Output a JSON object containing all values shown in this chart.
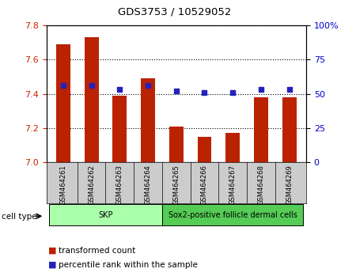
{
  "title": "GDS3753 / 10529052",
  "samples": [
    "GSM464261",
    "GSM464262",
    "GSM464263",
    "GSM464264",
    "GSM464265",
    "GSM464266",
    "GSM464267",
    "GSM464268",
    "GSM464269"
  ],
  "transformed_count": [
    7.69,
    7.73,
    7.39,
    7.49,
    7.21,
    7.15,
    7.17,
    7.38,
    7.38
  ],
  "percentile_rank": [
    56,
    56,
    53,
    56,
    52,
    51,
    51,
    53,
    53
  ],
  "ylim_left": [
    7.0,
    7.8
  ],
  "ylim_right": [
    0,
    100
  ],
  "yticks_left": [
    7.0,
    7.2,
    7.4,
    7.6,
    7.8
  ],
  "yticks_right": [
    0,
    25,
    50,
    75,
    100
  ],
  "ytick_labels_right": [
    "0",
    "25",
    "50",
    "75",
    "100%"
  ],
  "bar_color": "#bb2200",
  "dot_color": "#2222bb",
  "bar_width": 0.5,
  "cell_type_groups": [
    {
      "label": "SKP",
      "start": 0,
      "end": 4,
      "color": "#aaffaa"
    },
    {
      "label": "Sox2-positive follicle dermal cells",
      "start": 4,
      "end": 9,
      "color": "#55cc55"
    }
  ],
  "cell_type_label": "cell type",
  "legend_items": [
    {
      "label": "transformed count",
      "color": "#bb2200"
    },
    {
      "label": "percentile rank within the sample",
      "color": "#2222bb"
    }
  ],
  "background_color": "#ffffff",
  "tick_label_color_left": "#cc2200",
  "tick_label_color_right": "#0000cc",
  "xlim": [
    -0.6,
    8.6
  ]
}
